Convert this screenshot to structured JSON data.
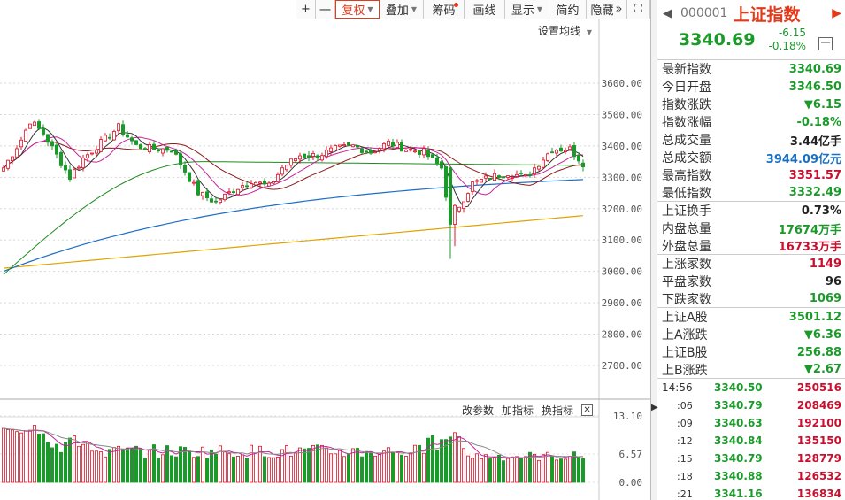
{
  "toolbar": {
    "buttons": [
      {
        "label": "+",
        "w": 22
      },
      {
        "label": "一",
        "w": 22
      },
      {
        "label": "复权",
        "w": 50,
        "active": true,
        "caret": true
      },
      {
        "label": "叠加",
        "w": 50,
        "caret": true
      },
      {
        "label": "筹码",
        "w": 46,
        "dot": true
      },
      {
        "label": "画线",
        "w": 46
      },
      {
        "label": "显示",
        "w": 50,
        "caret": true
      },
      {
        "label": "简约",
        "w": 42
      },
      {
        "label": "隐藏",
        "w": 46
      },
      {
        "label": "⛶",
        "w": 26
      }
    ],
    "more_symbol": "»"
  },
  "main_chart": {
    "settings_label": "设置均线",
    "y_ticks": [
      "3600.00",
      "3500.00",
      "3400.00",
      "3300.00",
      "3200.00",
      "3100.00",
      "3000.00",
      "2900.00",
      "2800.00",
      "2700.00"
    ],
    "colors": {
      "up": "#e0152b",
      "down": "#1b9a2a",
      "ma5": "#333333",
      "ma10": "#c8209c",
      "ma20": "#8b1a1a",
      "ma60": "#1e8c1e",
      "ma120": "#1e6cc8",
      "ma250": "#e0a400"
    }
  },
  "volume_panel": {
    "buttons": {
      "params": "改参数",
      "add": "加指标",
      "switch": "换指标",
      "close": "✕"
    },
    "y_ticks": [
      "13.10",
      "6.57",
      "0.00"
    ]
  },
  "splitter_arrow": "▶",
  "panel": {
    "back": "◀",
    "code": "000001",
    "name": "上证指数",
    "forward": "▶",
    "price": "3340.69",
    "change": "-6.15",
    "change_pct": "-0.18%",
    "minimize": "一",
    "stats": [
      {
        "k": "最新指数",
        "v": "3340.69",
        "c": "green"
      },
      {
        "k": "今日开盘",
        "v": "3346.50",
        "c": "green"
      },
      {
        "k": "指数涨跌",
        "v": "▼6.15",
        "c": "green"
      },
      {
        "k": "指数涨幅",
        "v": "-0.18%",
        "c": "green"
      },
      {
        "k": "总成交量",
        "v": "3.44亿手",
        "c": "dark"
      },
      {
        "k": "总成交额",
        "v": "3944.09亿元",
        "c": "blue"
      },
      {
        "k": "最高指数",
        "v": "3351.57",
        "c": "red"
      },
      {
        "k": "最低指数",
        "v": "3332.49",
        "c": "green",
        "sep": true
      },
      {
        "k": "上证换手",
        "v": "0.73%",
        "c": "dark"
      },
      {
        "k": "内盘总量",
        "v": "17674万手",
        "c": "green"
      },
      {
        "k": "外盘总量",
        "v": "16733万手",
        "c": "red",
        "sep": true
      },
      {
        "k": "上涨家数",
        "v": "1149",
        "c": "red"
      },
      {
        "k": "平盘家数",
        "v": "96",
        "c": "dark"
      },
      {
        "k": "下跌家数",
        "v": "1069",
        "c": "green",
        "sep": true
      },
      {
        "k": "上证A股",
        "v": "3501.12",
        "c": "green"
      },
      {
        "k": "上A涨跌",
        "v": "▼6.36",
        "c": "green"
      },
      {
        "k": "上证B股",
        "v": "256.88",
        "c": "green"
      },
      {
        "k": "上B涨跌",
        "v": "▼2.67",
        "c": "green",
        "sep": true
      }
    ],
    "ticks": [
      {
        "t": "14:56",
        "p": "3340.50",
        "v": "250516",
        "sub": false
      },
      {
        "t": ":06",
        "p": "3340.79",
        "v": "208469",
        "sub": true
      },
      {
        "t": ":09",
        "p": "3340.63",
        "v": "192100",
        "sub": true
      },
      {
        "t": ":12",
        "p": "3340.84",
        "v": "135150",
        "sub": true
      },
      {
        "t": ":15",
        "p": "3340.79",
        "v": "128779",
        "sub": true
      },
      {
        "t": ":18",
        "p": "3340.88",
        "v": "126532",
        "sub": true
      },
      {
        "t": ":21",
        "p": "3341.16",
        "v": "136834",
        "sub": true
      }
    ]
  }
}
